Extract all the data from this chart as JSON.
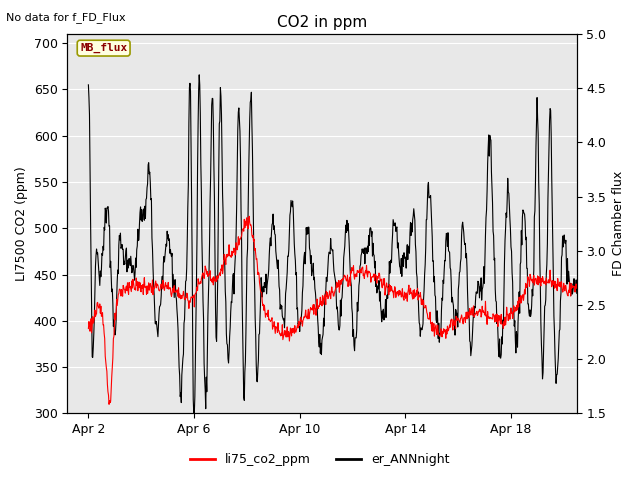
{
  "title": "CO2 in ppm",
  "top_left_text": "No data for f_FD_Flux",
  "ylabel_left": "LI7500 CO2 (ppm)",
  "ylabel_right": "FD Chamber flux",
  "ylim_left": [
    300,
    710
  ],
  "ylim_right": [
    1.5,
    5.0
  ],
  "yticks_left": [
    300,
    350,
    400,
    450,
    500,
    550,
    600,
    650,
    700
  ],
  "yticks_right": [
    1.5,
    2.0,
    2.5,
    3.0,
    3.5,
    4.0,
    4.5,
    5.0
  ],
  "xtick_labels": [
    "Apr 2",
    "Apr 6",
    "Apr 10",
    "Apr 14",
    "Apr 18"
  ],
  "xtick_positions": [
    1,
    5,
    9,
    13,
    17
  ],
  "xlim": [
    0.2,
    19.5
  ],
  "legend_labels": [
    "li75_co2_ppm",
    "er_ANNnight"
  ],
  "legend_colors": [
    "red",
    "black"
  ],
  "box_label": "MB_flux",
  "bg_color": "#e8e8e8",
  "outer_bg": "#ffffff",
  "title_fontsize": 11,
  "axis_label_fontsize": 9,
  "tick_fontsize": 9,
  "red_color": "#ff0000",
  "black_color": "#000000",
  "grid_color": "#ffffff"
}
